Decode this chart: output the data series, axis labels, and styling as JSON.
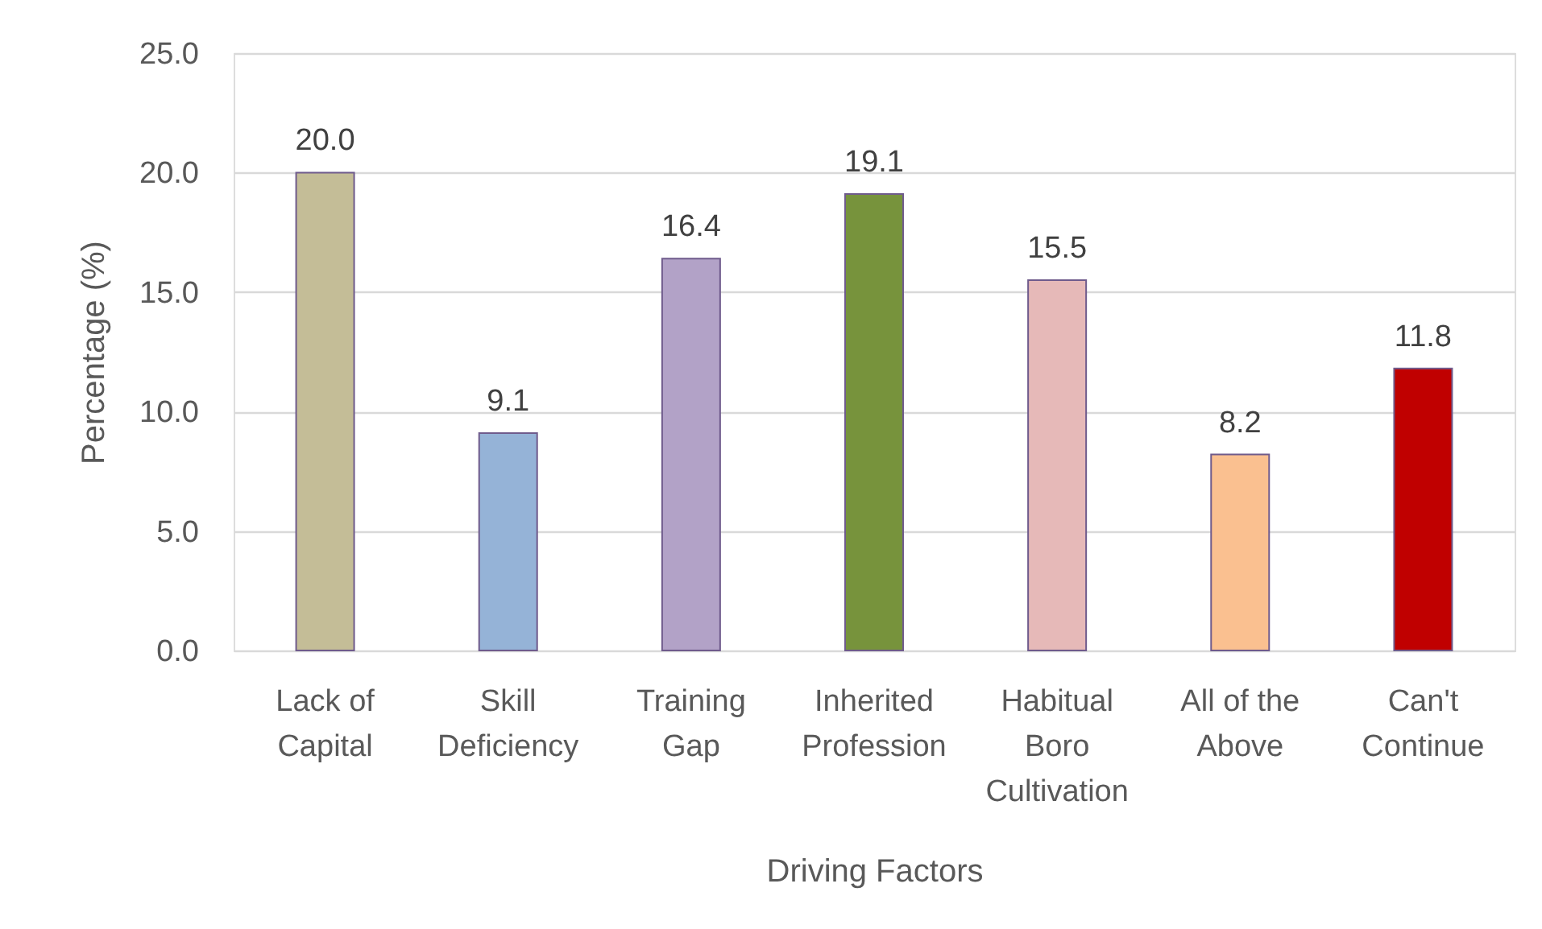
{
  "chart_data": {
    "type": "bar",
    "categories": [
      "Lack of Capital",
      "Skill Deficiency",
      "Training Gap",
      "Inherited Profession",
      "Habitual Boro Cultivation",
      "All of the Above",
      "Can't Continue"
    ],
    "values": [
      20.0,
      9.1,
      16.4,
      19.1,
      15.5,
      8.2,
      11.8
    ],
    "value_labels": [
      "20.0",
      "9.1",
      "16.4",
      "19.1",
      "15.5",
      "8.2",
      "11.8"
    ],
    "colors": [
      "#c4bd97",
      "#95b3d7",
      "#b2a2c7",
      "#77933c",
      "#e6b9b8",
      "#fac090",
      "#c00000"
    ],
    "xlabel": "Driving Factors",
    "ylabel": "Percentage (%)",
    "ylim": [
      0,
      25
    ],
    "yticks": [
      {
        "value": 0,
        "label": "0.0"
      },
      {
        "value": 5,
        "label": "5.0"
      },
      {
        "value": 10,
        "label": "10.0"
      },
      {
        "value": 15,
        "label": "15.0"
      },
      {
        "value": 20,
        "label": "20.0"
      },
      {
        "value": 25,
        "label": "25.0"
      }
    ],
    "grid": "y"
  }
}
